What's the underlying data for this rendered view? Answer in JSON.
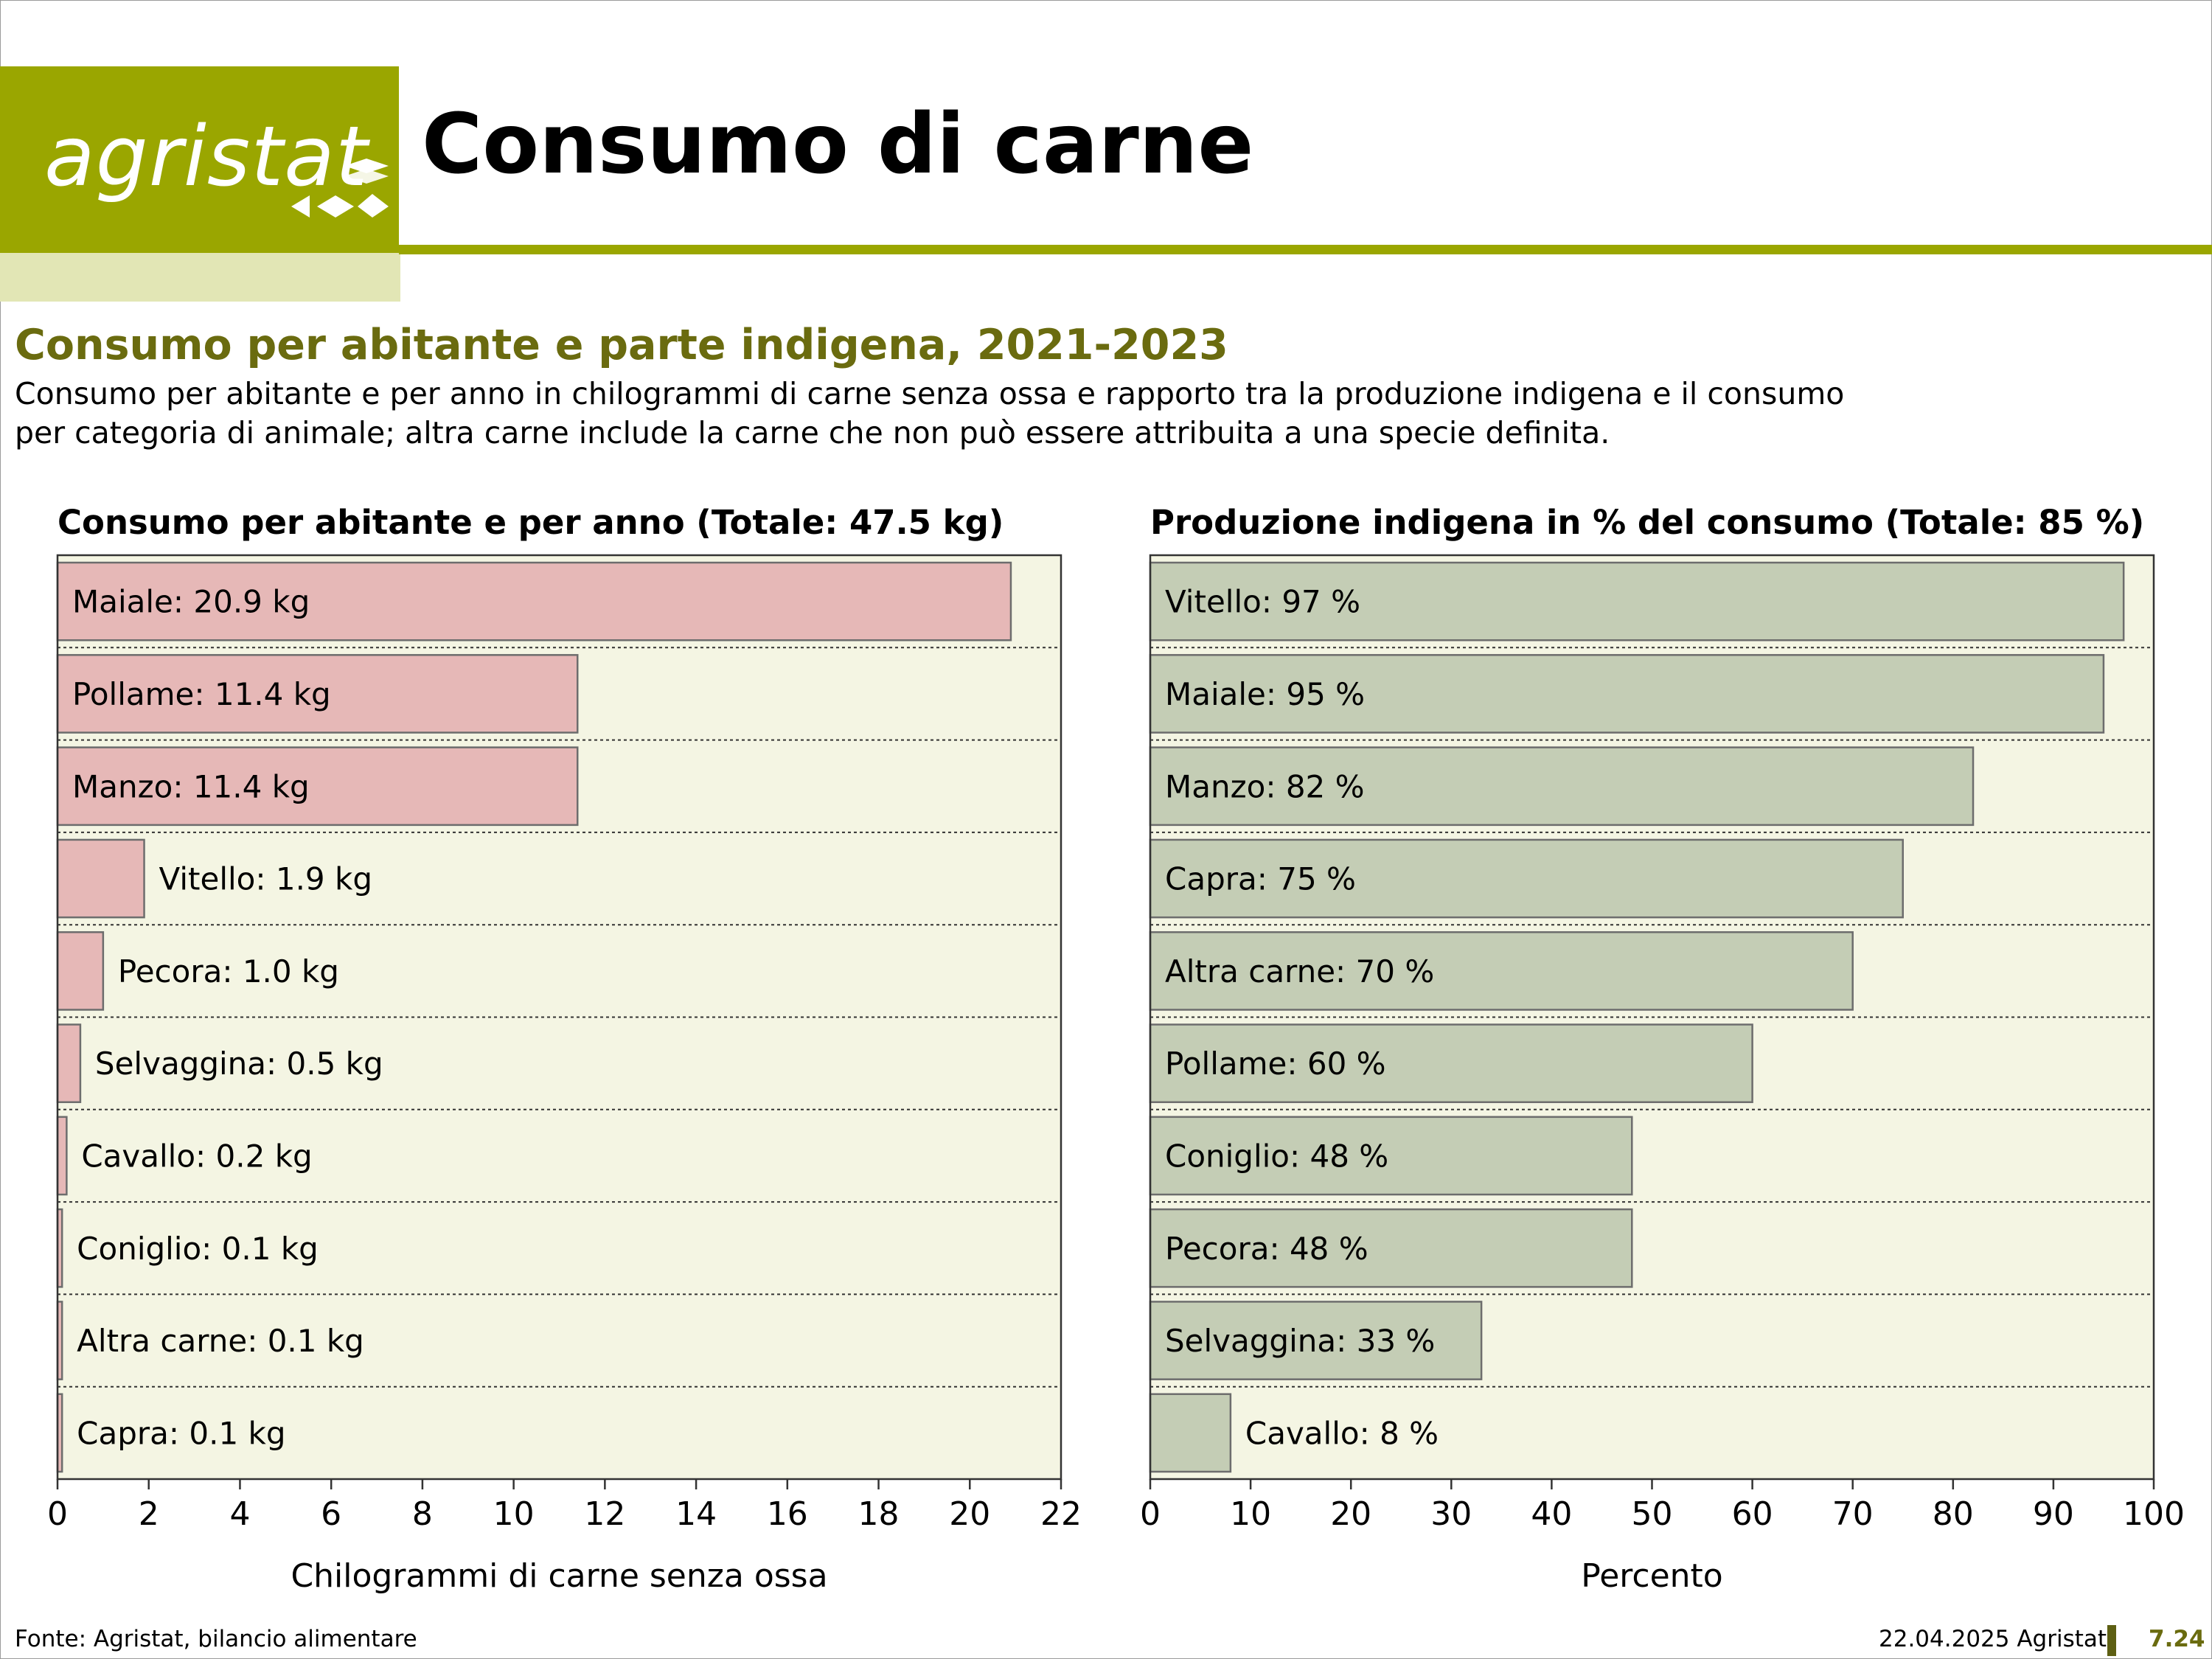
{
  "logo": {
    "text": "agristat"
  },
  "page_title": "Consumo di carne",
  "subtitle": "Consumo per abitante e parte indigena, 2021-2023",
  "description_lines": [
    "Consumo per abitante e per anno in chilogrammi di carne senza ossa e rapporto tra la produzione indigena e il consumo",
    "per categoria di animale; altra carne include la carne che non può essere attribuita a una specie definita."
  ],
  "colors": {
    "brand": "#9aa600",
    "brand_light": "#e2e6b5",
    "title_green": "#6a6b0f",
    "plot_bg": "#f4f5e3",
    "bar_left": "#e6b8b7",
    "bar_right": "#c4cdb5"
  },
  "chart_data": [
    {
      "type": "bar",
      "orientation": "horizontal",
      "title": "Consumo per abitante e per anno (Totale: 47.5 kg)",
      "xlabel": "Chilogrammi di carne senza ossa",
      "xlim": [
        0,
        22
      ],
      "xticks": [
        0,
        2,
        4,
        6,
        8,
        10,
        12,
        14,
        16,
        18,
        20,
        22
      ],
      "categories": [
        "Maiale",
        "Pollame",
        "Manzo",
        "Vitello",
        "Pecora",
        "Selvaggina",
        "Cavallo",
        "Coniglio",
        "Altra carne",
        "Capra"
      ],
      "values": [
        20.9,
        11.4,
        11.4,
        1.9,
        1.0,
        0.5,
        0.2,
        0.1,
        0.1,
        0.1
      ],
      "labels": [
        "Maiale: 20.9 kg",
        "Pollame: 11.4 kg",
        "Manzo: 11.4 kg",
        "Vitello: 1.9 kg",
        "Pecora: 1.0 kg",
        "Selvaggina: 0.5 kg",
        "Cavallo: 0.2 kg",
        "Coniglio: 0.1 kg",
        "Altra carne: 0.1 kg",
        "Capra: 0.1 kg"
      ]
    },
    {
      "type": "bar",
      "orientation": "horizontal",
      "title": "Produzione indigena in % del consumo (Totale: 85 %)",
      "xlabel": "Percento",
      "xlim": [
        0,
        100
      ],
      "xticks": [
        0,
        10,
        20,
        30,
        40,
        50,
        60,
        70,
        80,
        90,
        100
      ],
      "categories": [
        "Vitello",
        "Maiale",
        "Manzo",
        "Capra",
        "Altra carne",
        "Pollame",
        "Coniglio",
        "Pecora",
        "Selvaggina",
        "Cavallo"
      ],
      "values": [
        97,
        95,
        82,
        75,
        70,
        60,
        48,
        48,
        33,
        8
      ],
      "labels": [
        "Vitello: 97 %",
        "Maiale: 95 %",
        "Manzo: 82 %",
        "Capra: 75 %",
        "Altra carne: 70 %",
        "Pollame: 60 %",
        "Coniglio: 48 %",
        "Pecora: 48 %",
        "Selvaggina: 33 %",
        "Cavallo: 8 %"
      ]
    }
  ],
  "footer": {
    "source": "Fonte: Agristat, bilancio alimentare",
    "date": "22.04.2025 Agristat",
    "page": "7.24"
  }
}
